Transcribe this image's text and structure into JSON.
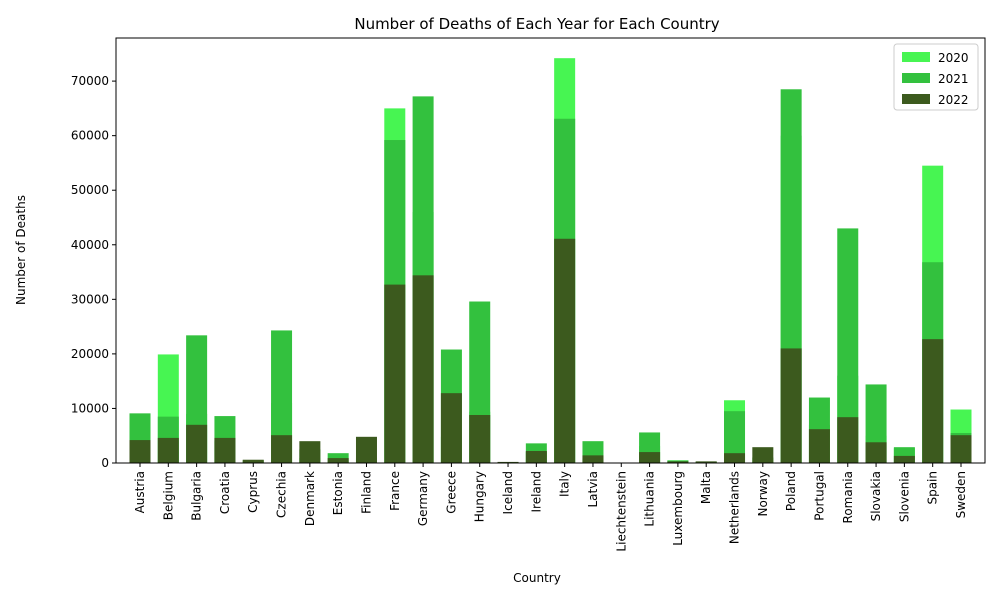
{
  "chart_data": {
    "type": "bar",
    "barmode": "overlay",
    "title": "Number of Deaths of Each Year for Each Country",
    "x_label": "Country",
    "y_label": "Number of Deaths",
    "categories": [
      "Austria",
      "Belgium",
      "Bulgaria",
      "Croatia",
      "Cyprus",
      "Czechia",
      "Denmark",
      "Estonia",
      "Finland",
      "France",
      "Germany",
      "Greece",
      "Hungary",
      "Iceland",
      "Ireland",
      "Italy",
      "Latvia",
      "Liechtenstein",
      "Lithuania",
      "Luxembourg",
      "Malta",
      "Netherlands",
      "Norway",
      "Poland",
      "Portugal",
      "Romania",
      "Slovakia",
      "Slovenia",
      "Spain",
      "Sweden"
    ],
    "series": [
      {
        "name": "2020",
        "color": "#47f552",
        "values": [
          6500,
          19900,
          9000,
          4000,
          150,
          11000,
          900,
          200,
          600,
          65000,
          46000,
          4800,
          9400,
          30,
          2000,
          74200,
          800,
          30,
          3100,
          500,
          250,
          11500,
          200,
          60000,
          7000,
          16000,
          5000,
          2700,
          54500,
          9800
        ]
      },
      {
        "name": "2021",
        "color": "#33c13e",
        "values": [
          9100,
          8500,
          23400,
          8600,
          500,
          24300,
          2500,
          1800,
          1000,
          59200,
          67200,
          20800,
          29600,
          30,
          3600,
          63100,
          4000,
          60,
          5600,
          450,
          200,
          9500,
          1000,
          68500,
          12000,
          43000,
          14400,
          2900,
          36800,
          5500
        ]
      },
      {
        "name": "2022",
        "color": "#3c5a1e",
        "values": [
          4200,
          4600,
          7000,
          4600,
          600,
          5100,
          4000,
          900,
          4800,
          32700,
          34400,
          12800,
          8800,
          200,
          2200,
          41100,
          1400,
          50,
          2000,
          300,
          300,
          1800,
          2900,
          21000,
          6200,
          8400,
          3800,
          1300,
          22700,
          5100
        ]
      }
    ],
    "ylim": [
      0,
      77900
    ],
    "yticks": [
      0,
      10000,
      20000,
      30000,
      40000,
      50000,
      60000,
      70000
    ],
    "legend": "upper right"
  }
}
